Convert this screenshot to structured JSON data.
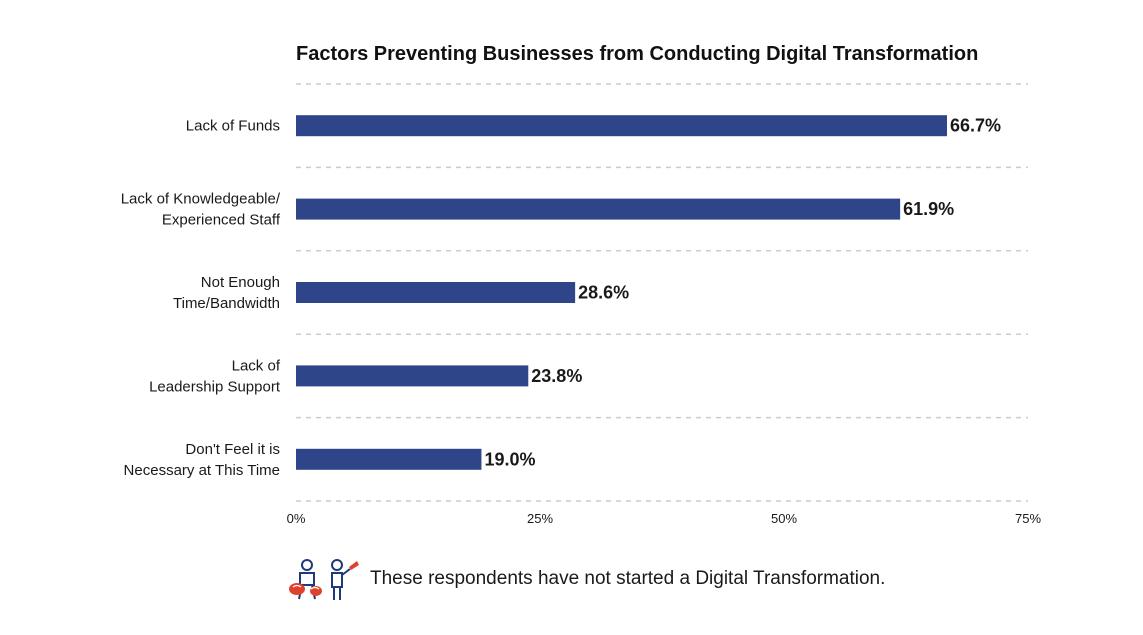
{
  "colors": {
    "bar": "#2e4589",
    "grid": "#cccccc",
    "text": "#1a1a1a",
    "icon_outline": "#1e3a7a",
    "icon_accent": "#e0412c"
  },
  "chart_data": {
    "type": "bar",
    "orientation": "horizontal",
    "title": "Factors Preventing Businesses from Conducting Digital Transformation",
    "categories": [
      [
        "Lack of Funds"
      ],
      [
        "Lack of Knowledgeable/",
        "Experienced Staff"
      ],
      [
        "Not Enough",
        "Time/Bandwidth"
      ],
      [
        "Lack of",
        "Leadership Support"
      ],
      [
        "Don't Feel it is",
        "Necessary at This Time"
      ]
    ],
    "values": [
      66.7,
      61.9,
      28.6,
      23.8,
      19.0
    ],
    "value_labels": [
      "66.7%",
      "61.9%",
      "28.6%",
      "23.8%",
      "19.0%"
    ],
    "xlim": [
      0,
      75
    ],
    "x_ticks": [
      0,
      25,
      50,
      75
    ],
    "x_tick_labels": [
      "0%",
      "25%",
      "50%",
      "75%"
    ],
    "grid": "horizontal-dashed",
    "legend": "none"
  },
  "footer": {
    "note": "These respondents have not started a Digital Transformation.",
    "icons": [
      "seated-person-icon",
      "standing-person-icon"
    ]
  }
}
